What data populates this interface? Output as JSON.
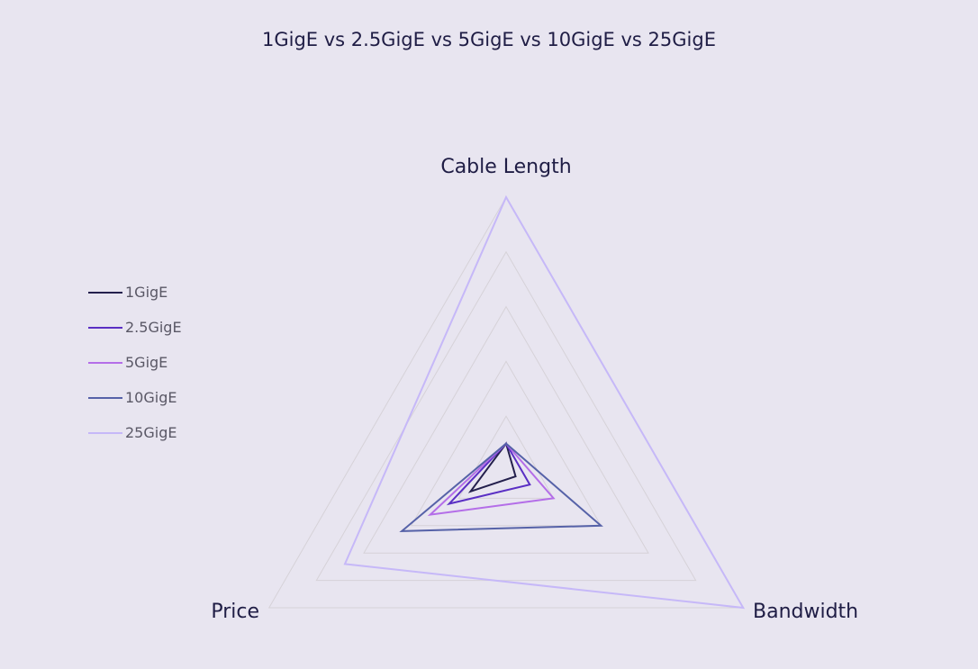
{
  "chart_data": {
    "type": "radar",
    "title": "1GigE vs 2.5GigE vs 5GigE vs 10GigE vs 25GigE",
    "axes": [
      "Cable Length",
      "Bandwidth",
      "Price"
    ],
    "range": [
      0,
      100
    ],
    "grid_levels": 5,
    "grid": true,
    "legend_placement": "left",
    "series": [
      {
        "name": "1GigE",
        "color": "#24204d",
        "values": [
          10,
          4,
          15
        ]
      },
      {
        "name": "2.5GigE",
        "color": "#5a2fc4",
        "values": [
          10,
          10,
          24
        ]
      },
      {
        "name": "5GigE",
        "color": "#b46ee8",
        "values": [
          10,
          20,
          32
        ]
      },
      {
        "name": "10GigE",
        "color": "#5662a8",
        "values": [
          10,
          40,
          44
        ]
      },
      {
        "name": "25GigE",
        "color": "#c6b8f8",
        "values": [
          100,
          100,
          68
        ]
      }
    ]
  }
}
